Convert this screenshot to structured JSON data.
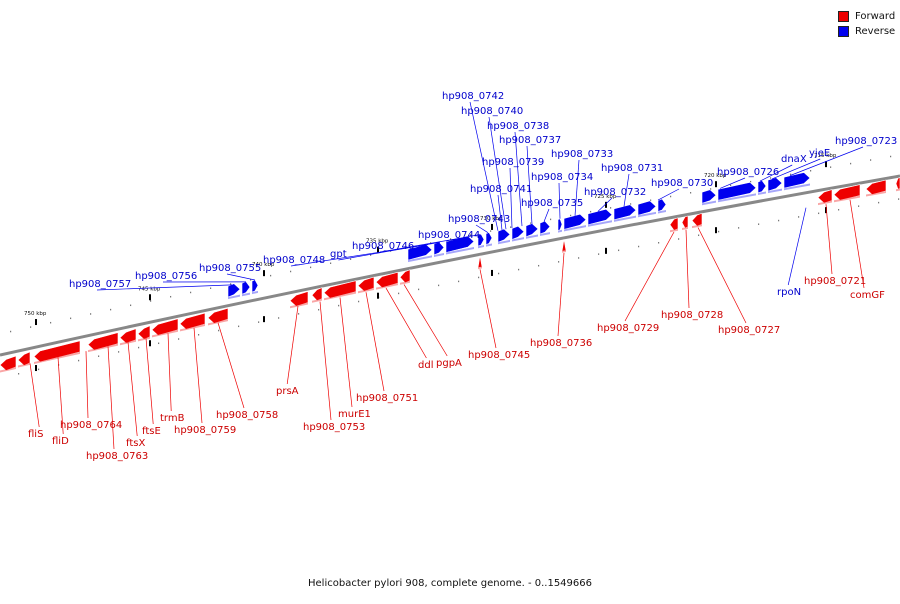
{
  "legend": [
    {
      "label": "Forward",
      "color": "#ee0000"
    },
    {
      "label": "Reverse",
      "color": "#0000ee"
    }
  ],
  "caption": "Helicobacter pylori 908, complete genome. - 0..1549666",
  "colors": {
    "forward": "#ee0000",
    "reverse": "#0000ee",
    "forward_label": "#cc0000",
    "reverse_label": "#0000cc",
    "backbone": "#888888"
  },
  "scale_labels": [
    "750 kbp",
    "745 kbp",
    "740 kbp",
    "735 kbp",
    "730 kbp",
    "725 kbp",
    "720 kbp",
    "715 kbp"
  ],
  "forward_genes": [
    "fliS",
    "fliD",
    "hp908_0764",
    "hp908_0763",
    "ftsX",
    "ftsE",
    "trmB",
    "hp908_0759",
    "hp908_0758",
    "prsA",
    "hp908_0753",
    "murE1",
    "hp908_0751",
    "ddl",
    "pgpA",
    "hp908_0745",
    "hp908_0736",
    "hp908_0729",
    "hp908_0728",
    "hp908_0727",
    "hp908_0721",
    "comGF"
  ],
  "reverse_genes": [
    "hp908_0757",
    "hp908_0756",
    "hp908_0755",
    "hp908_0748",
    "gpt",
    "hp908_0746",
    "hp908_0744",
    "hp908_0743",
    "hp908_0741",
    "hp908_0739",
    "hp908_0742",
    "hp908_0740",
    "hp908_0738",
    "hp908_0737",
    "hp908_0735",
    "hp908_0734",
    "hp908_0733",
    "hp908_0732",
    "hp908_0731",
    "hp908_0730",
    "hp908_0726",
    "dnaX",
    "yjeE",
    "hp908_0723",
    "rpoN"
  ]
}
